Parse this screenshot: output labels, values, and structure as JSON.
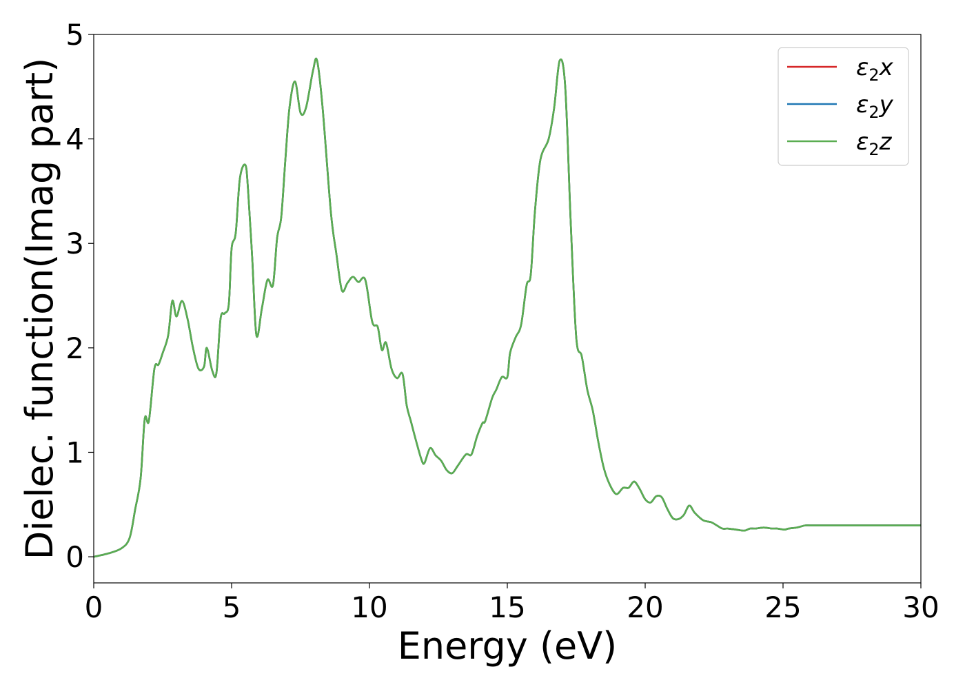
{
  "chart_data": {
    "type": "line",
    "title": "",
    "xlabel": "Energy (eV)",
    "ylabel": "Dielec. function(Imag part)",
    "xlim": [
      0,
      30
    ],
    "ylim": [
      -0.25,
      5
    ],
    "xticks": [
      "0",
      "5",
      "10",
      "15",
      "20",
      "25",
      "30"
    ],
    "yticks": [
      "0",
      "1",
      "2",
      "3",
      "4",
      "5"
    ],
    "grid": false,
    "legend_position": "top-right",
    "legend": [
      {
        "symbol": "ε",
        "sub": "2",
        "var": "x",
        "color": "#d62728"
      },
      {
        "symbol": "ε",
        "sub": "2",
        "var": "y",
        "color": "#1f77b4"
      },
      {
        "symbol": "ε",
        "sub": "2",
        "var": "z",
        "color": "#5aad51"
      }
    ],
    "x": [
      0,
      0.5,
      1.0,
      1.3,
      1.5,
      1.7,
      1.85,
      2.0,
      2.2,
      2.35,
      2.5,
      2.7,
      2.85,
      3.0,
      3.2,
      3.4,
      3.6,
      3.8,
      4.0,
      4.1,
      4.3,
      4.45,
      4.6,
      4.75,
      4.9,
      5.0,
      5.15,
      5.3,
      5.5,
      5.6,
      5.75,
      5.9,
      6.1,
      6.3,
      6.5,
      6.65,
      6.8,
      6.95,
      7.1,
      7.3,
      7.5,
      7.7,
      7.95,
      8.1,
      8.3,
      8.6,
      8.8,
      9.0,
      9.2,
      9.4,
      9.6,
      9.85,
      10.1,
      10.3,
      10.45,
      10.6,
      10.8,
      11.0,
      11.2,
      11.35,
      11.5,
      11.7,
      11.9,
      12.0,
      12.2,
      12.4,
      12.6,
      12.8,
      13.0,
      13.2,
      13.5,
      13.7,
      13.9,
      14.1,
      14.2,
      14.45,
      14.6,
      14.8,
      15.0,
      15.1,
      15.3,
      15.5,
      15.7,
      15.85,
      16.0,
      16.2,
      16.5,
      16.7,
      16.9,
      17.1,
      17.3,
      17.5,
      17.7,
      17.9,
      18.1,
      18.3,
      18.5,
      18.7,
      18.95,
      19.2,
      19.4,
      19.6,
      19.8,
      20.0,
      20.2,
      20.4,
      20.6,
      20.8,
      21.0,
      21.2,
      21.4,
      21.6,
      21.8,
      22.1,
      22.4,
      22.6,
      22.8,
      23.0,
      23.3,
      23.6,
      23.8,
      24.0,
      24.3,
      24.6,
      24.8,
      25.05,
      25.2,
      25.5,
      25.8,
      26.0,
      26.3,
      26.6,
      27.0,
      27.3,
      27.5,
      27.8,
      28.0,
      28.3,
      28.6,
      29.0,
      29.3,
      29.6,
      30.0
    ],
    "series": [
      {
        "name": "ε2x",
        "color": "#d62728",
        "values": [
          0.0,
          0.03,
          0.08,
          0.18,
          0.45,
          0.75,
          1.32,
          1.3,
          1.8,
          1.84,
          1.95,
          2.12,
          2.45,
          2.3,
          2.45,
          2.28,
          2.0,
          1.8,
          1.82,
          2.0,
          1.78,
          1.76,
          2.28,
          2.33,
          2.42,
          2.95,
          3.1,
          3.62,
          3.75,
          3.5,
          2.85,
          2.12,
          2.38,
          2.65,
          2.6,
          3.05,
          3.25,
          3.8,
          4.3,
          4.55,
          4.25,
          4.3,
          4.65,
          4.75,
          4.3,
          3.3,
          2.9,
          2.55,
          2.62,
          2.68,
          2.63,
          2.65,
          2.25,
          2.2,
          1.98,
          2.05,
          1.8,
          1.71,
          1.75,
          1.45,
          1.3,
          1.1,
          0.92,
          0.9,
          1.04,
          0.97,
          0.92,
          0.83,
          0.8,
          0.87,
          0.98,
          0.98,
          1.15,
          1.28,
          1.3,
          1.52,
          1.6,
          1.72,
          1.72,
          1.95,
          2.1,
          2.22,
          2.6,
          2.7,
          3.3,
          3.8,
          4.0,
          4.3,
          4.75,
          4.5,
          3.2,
          2.1,
          1.92,
          1.6,
          1.4,
          1.1,
          0.85,
          0.7,
          0.6,
          0.66,
          0.66,
          0.72,
          0.65,
          0.55,
          0.52,
          0.58,
          0.57,
          0.46,
          0.37,
          0.36,
          0.4,
          0.49,
          0.42,
          0.35,
          0.33,
          0.3,
          0.27,
          0.27,
          0.26,
          0.25,
          0.27,
          0.27,
          0.28,
          0.27,
          0.27,
          0.26,
          0.27,
          0.28,
          0.3,
          0.3,
          0.3,
          0.3,
          0.3,
          0.3,
          0.3,
          0.3,
          0.3,
          0.3,
          0.3,
          0.3,
          0.3,
          0.3,
          0.3
        ]
      }
    ]
  }
}
